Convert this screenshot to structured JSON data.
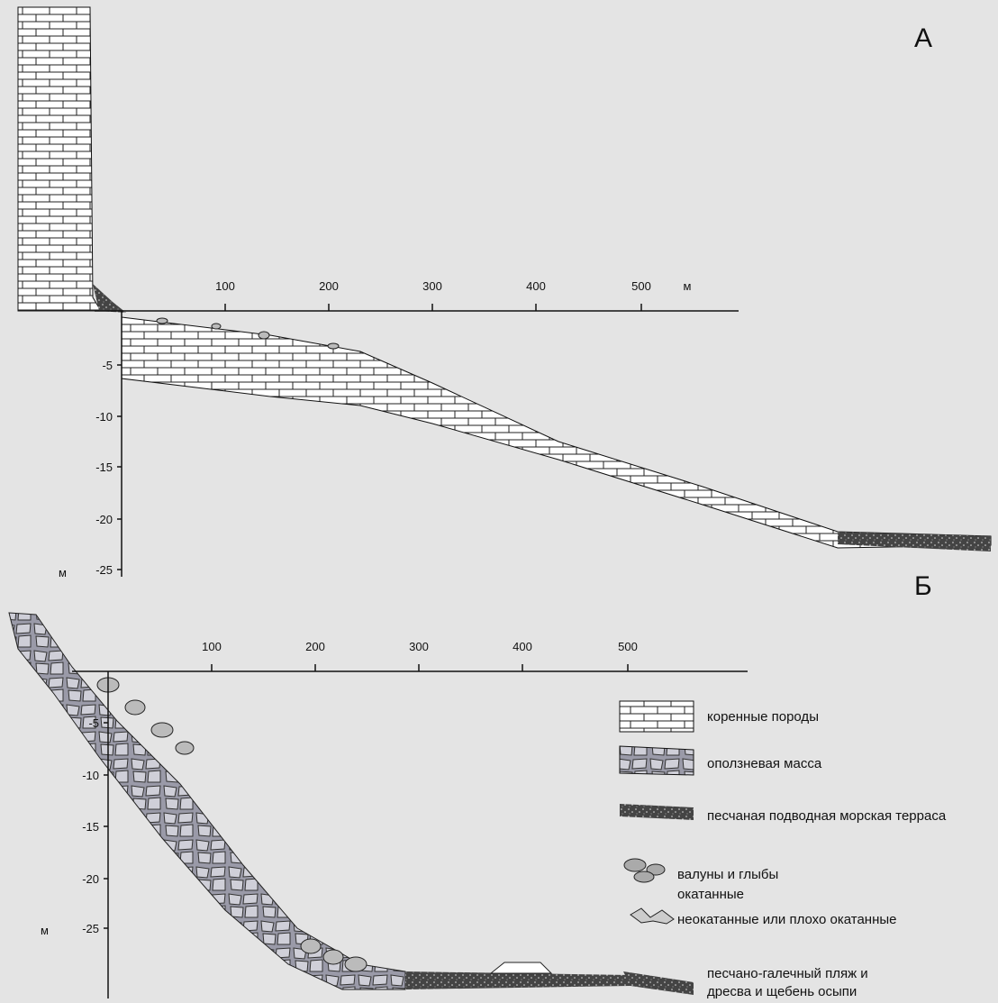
{
  "panel_a": {
    "label": "А",
    "x_ticks": [
      "100",
      "200",
      "300",
      "400",
      "500"
    ],
    "x_unit": "м",
    "y_ticks": [
      "-5",
      "-10",
      "-15",
      "-20",
      "-25"
    ],
    "y_unit": "м"
  },
  "panel_b": {
    "label": "Б",
    "x_ticks": [
      "100",
      "200",
      "300",
      "400",
      "500"
    ],
    "y_ticks": [
      "-5",
      "-10",
      "-15",
      "-20",
      "-25"
    ],
    "y_unit": "м"
  },
  "legend": {
    "items": [
      "коренные породы",
      "оползневая масса",
      "песчаная подводная морская терраса",
      "валуны и глыбы",
      "окатанные",
      "неокатанные или плохо окатанные",
      "песчано-галечный пляж и",
      "дресва и щебень осыпи"
    ]
  }
}
